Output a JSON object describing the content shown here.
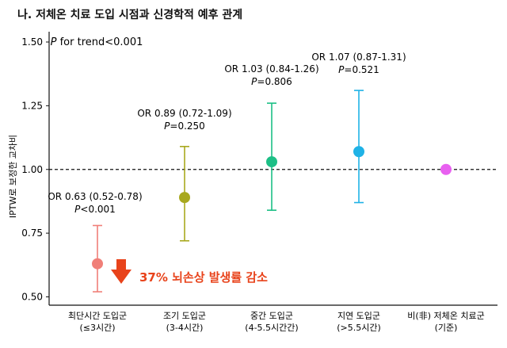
{
  "title": "나. 저체온 치료 도입 시점과 신경학적 예후 관계",
  "trend_label": {
    "italic": "P",
    "rest": " for trend<0.001"
  },
  "callout": {
    "text": "37% 뇌손상 발생률 감소",
    "color": "#e8431b"
  },
  "colors": {
    "axis": "#111111",
    "reference_line": "#111111"
  },
  "chart_data": {
    "type": "scatter",
    "ylabel": "IPTW로 보정한 교차비",
    "ylim": [
      0.5,
      1.5
    ],
    "yticks": [
      "0.50",
      "0.75",
      "1.00",
      "1.25",
      "1.50"
    ],
    "reference_line": 1.0,
    "points": [
      {
        "label1": "최단시간 도입군",
        "label2": "(≤3시간)",
        "or": 0.63,
        "lo": 0.52,
        "hi": 0.78,
        "color": "#f07f78",
        "ann1": "OR 0.63 (0.52-0.78)",
        "ann2_italic": "P",
        "ann2_rest": "<0.001"
      },
      {
        "label1": "조기 도입군",
        "label2": "(3-4시간)",
        "or": 0.89,
        "lo": 0.72,
        "hi": 1.09,
        "color": "#a8a81e",
        "ann1": "OR 0.89 (0.72-1.09)",
        "ann2_italic": "P",
        "ann2_rest": "=0.250"
      },
      {
        "label1": "중간 도입군",
        "label2": "(4-5.5시간간)",
        "or": 1.03,
        "lo": 0.84,
        "hi": 1.26,
        "color": "#1dbf86",
        "ann1": "OR 1.03 (0.84-1.26)",
        "ann2_italic": "P",
        "ann2_rest": "=0.806"
      },
      {
        "label1": "지연 도입군",
        "label2": "(>5.5시간)",
        "or": 1.07,
        "lo": 0.87,
        "hi": 1.31,
        "color": "#1fb2e6",
        "ann1": "OR 1.07 (0.87-1.31)",
        "ann2_italic": "P",
        "ann2_rest": "=0.521"
      },
      {
        "label1": "비(非) 저체온 치료군",
        "label2": "(기준)",
        "or": 1.0,
        "lo": null,
        "hi": null,
        "color": "#e860f0",
        "ann1": "",
        "ann2_italic": "",
        "ann2_rest": ""
      }
    ]
  }
}
